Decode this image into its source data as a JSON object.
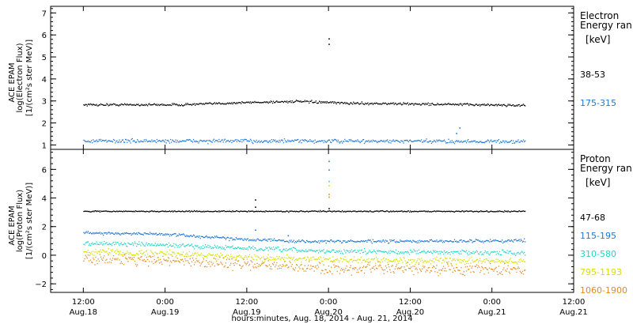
{
  "chart_data": [
    {
      "type": "scatter",
      "panel": "electron",
      "ylabel": [
        "ACE EPAM",
        "log(Electron Flux)",
        "[1/(cm²s ster MeV)]"
      ],
      "ylim": [
        0.8,
        7.3
      ],
      "yticks": [
        1,
        2,
        3,
        4,
        5,
        6,
        7
      ],
      "legend_title": [
        "Electron",
        "Energy ran"
      ],
      "legend_unit": "[keV]",
      "series": [
        {
          "name": "38-53",
          "color": "#000000",
          "base": [
            [
              0,
              2.85
            ],
            [
              0.6,
              2.85
            ],
            [
              1.0,
              2.95
            ],
            [
              1.3,
              3.0
            ],
            [
              1.6,
              2.92
            ],
            [
              2.4,
              2.85
            ],
            [
              2.7,
              2.82
            ]
          ],
          "noise": 0.05,
          "spikes": [
            [
              1.5,
              5.85
            ],
            [
              1.5,
              5.6
            ]
          ]
        },
        {
          "name": "175-315",
          "color": "#1f77d4",
          "base": [
            [
              0,
              1.2
            ],
            [
              1.0,
              1.2
            ],
            [
              2.7,
              1.18
            ]
          ],
          "noise": 0.08,
          "spikes": [
            [
              2.3,
              1.8
            ],
            [
              2.28,
              1.55
            ]
          ]
        }
      ]
    },
    {
      "type": "scatter",
      "panel": "proton",
      "ylabel": [
        "ACE EPAM",
        "log(Proton Flux)",
        "[1/(cm²s ster MeV)]"
      ],
      "ylim": [
        -2.6,
        7.4
      ],
      "yticks": [
        -2,
        0,
        2,
        4,
        6
      ],
      "legend_title": [
        "Proton",
        "Energy ran"
      ],
      "legend_unit": "[keV]",
      "series": [
        {
          "name": "47-68",
          "color": "#000000",
          "base": [
            [
              0,
              3.1
            ],
            [
              2.7,
              3.1
            ]
          ],
          "noise": 0.04,
          "spikes": [
            [
              1.05,
              3.9
            ],
            [
              1.05,
              3.4
            ],
            [
              1.5,
              3.3
            ]
          ]
        },
        {
          "name": "115-195",
          "color": "#1f77d4",
          "base": [
            [
              0,
              1.6
            ],
            [
              0.5,
              1.5
            ],
            [
              0.9,
              1.2
            ],
            [
              1.3,
              1.0
            ],
            [
              2.0,
              1.0
            ],
            [
              2.7,
              1.05
            ]
          ],
          "noise": 0.1,
          "spikes": [
            [
              1.5,
              6.6
            ],
            [
              1.5,
              6.0
            ],
            [
              1.05,
              1.8
            ],
            [
              1.25,
              1.4
            ]
          ]
        },
        {
          "name": "310-580",
          "color": "#22d4c8",
          "base": [
            [
              0,
              0.9
            ],
            [
              0.6,
              0.7
            ],
            [
              1.0,
              0.5
            ],
            [
              1.5,
              0.3
            ],
            [
              2.7,
              0.2
            ]
          ],
          "noise": 0.15,
          "spikes": [
            [
              1.5,
              5.2
            ]
          ]
        },
        {
          "name": "795-1193",
          "color": "#d4e000",
          "base": [
            [
              0,
              0.3
            ],
            [
              0.6,
              0.1
            ],
            [
              1.0,
              -0.1
            ],
            [
              1.5,
              -0.3
            ],
            [
              2.7,
              -0.4
            ]
          ],
          "noise": 0.2,
          "spikes": [
            [
              1.5,
              4.9
            ]
          ]
        },
        {
          "name": "1060-1900",
          "color": "#e58a1f",
          "base": [
            [
              0,
              -0.2
            ],
            [
              0.6,
              -0.35
            ],
            [
              1.0,
              -0.6
            ],
            [
              1.5,
              -0.9
            ],
            [
              2.7,
              -1.0
            ]
          ],
          "noise": 0.35,
          "spikes": [
            [
              1.5,
              4.3
            ],
            [
              1.5,
              4.1
            ]
          ]
        }
      ]
    }
  ],
  "x_axis": {
    "label": "hours:minutes, Aug. 18, 2014 - Aug. 21, 2014",
    "xlim": [
      -0.2,
      3.0
    ],
    "data_range": [
      0.0,
      2.7
    ],
    "ticks": [
      {
        "x": 0.0,
        "time": "12:00",
        "date": "Aug.18"
      },
      {
        "x": 0.5,
        "time": "0:00",
        "date": "Aug.19"
      },
      {
        "x": 1.0,
        "time": "12:00",
        "date": "Aug.19"
      },
      {
        "x": 1.5,
        "time": "0:00",
        "date": "Aug.20"
      },
      {
        "x": 2.0,
        "time": "12:00",
        "date": "Aug.20"
      },
      {
        "x": 2.5,
        "time": "0:00",
        "date": "Aug.21"
      },
      {
        "x": 3.0,
        "time": "12:00",
        "date": "Aug.21"
      }
    ]
  }
}
